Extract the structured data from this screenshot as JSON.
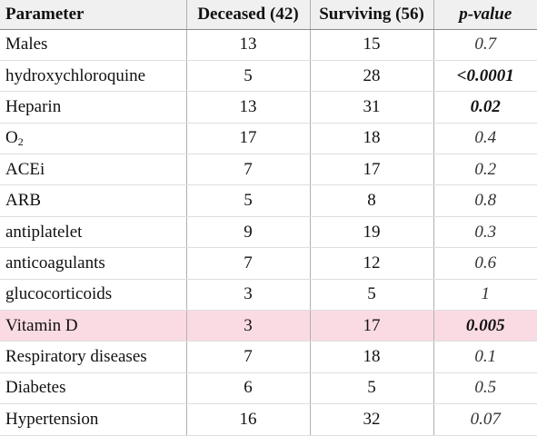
{
  "table": {
    "headers": {
      "parameter": "Parameter",
      "deceased": "Deceased (42)",
      "surviving": "Surviving (56)",
      "p_value": "p-value"
    },
    "rows": [
      {
        "parameter": "Males",
        "deceased": "13",
        "surviving": "15",
        "p_value": "0.7",
        "significant": false
      },
      {
        "parameter": "hydroxychloroquine",
        "deceased": "5",
        "surviving": "28",
        "p_value": "<0.0001",
        "significant": true
      },
      {
        "parameter": "Heparin",
        "deceased": "13",
        "surviving": "31",
        "p_value": "0.02",
        "significant": true
      },
      {
        "parameter": "O",
        "parameter_sub": "2",
        "deceased": "17",
        "surviving": "18",
        "p_value": "0.4",
        "significant": false
      },
      {
        "parameter": "ACEi",
        "deceased": "7",
        "surviving": "17",
        "p_value": "0.2",
        "significant": false
      },
      {
        "parameter": "ARB",
        "deceased": "5",
        "surviving": "8",
        "p_value": "0.8",
        "significant": false
      },
      {
        "parameter": "antiplatelet",
        "deceased": "9",
        "surviving": "19",
        "p_value": "0.3",
        "significant": false
      },
      {
        "parameter": "anticoagulants",
        "deceased": "7",
        "surviving": "12",
        "p_value": "0.6",
        "significant": false
      },
      {
        "parameter": "glucocorticoids",
        "deceased": "3",
        "surviving": "5",
        "p_value": "1",
        "significant": false
      },
      {
        "parameter": "Vitamin D",
        "deceased": "3",
        "surviving": "17",
        "p_value": "0.005",
        "significant": true,
        "highlighted": true
      },
      {
        "parameter": "Respiratory diseases",
        "deceased": "7",
        "surviving": "18",
        "p_value": "0.1",
        "significant": false
      },
      {
        "parameter": "Diabetes",
        "deceased": "6",
        "surviving": "5",
        "p_value": "0.5",
        "significant": false
      },
      {
        "parameter": "Hypertension",
        "deceased": "16",
        "surviving": "32",
        "p_value": "0.07",
        "significant": false
      }
    ]
  }
}
